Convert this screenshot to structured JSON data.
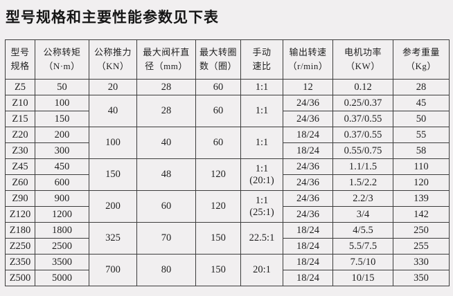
{
  "title": "型号规格和主要性能参数见下表",
  "colors": {
    "background": "#f1eff0",
    "border": "#3c3c3c",
    "text": "#1f1f1f"
  },
  "table": {
    "headers": [
      "型号\n规格",
      "公称转矩\n（N·m）",
      "公称推力\n（KN）",
      "最大阀杆直\n径（mm）",
      "最大转圈\n数（圈）",
      "手动\n速比",
      "输出转速\n（r/min）",
      "电机功率\n（KW）",
      "参考重量\n（Kg）"
    ],
    "rows": [
      {
        "cells": [
          {
            "v": "Z5"
          },
          {
            "v": "50"
          },
          {
            "v": "20"
          },
          {
            "v": "28"
          },
          {
            "v": "60"
          },
          {
            "v": "1:1"
          },
          {
            "v": "12"
          },
          {
            "v": "0.12"
          },
          {
            "v": "28"
          }
        ]
      },
      {
        "cells": [
          {
            "v": "Z10"
          },
          {
            "v": "100"
          },
          {
            "v": "40",
            "rs": 2
          },
          {
            "v": "28",
            "rs": 2
          },
          {
            "v": "60",
            "rs": 2
          },
          {
            "v": "1:1",
            "rs": 2
          },
          {
            "v": "24/36"
          },
          {
            "v": "0.25/0.37"
          },
          {
            "v": "45"
          }
        ]
      },
      {
        "cells": [
          {
            "v": "Z15"
          },
          {
            "v": "150"
          },
          {
            "v": "24/36"
          },
          {
            "v": "0.37/0.55"
          },
          {
            "v": "50"
          }
        ]
      },
      {
        "cells": [
          {
            "v": "Z20"
          },
          {
            "v": "200"
          },
          {
            "v": "100",
            "rs": 2
          },
          {
            "v": "40",
            "rs": 2
          },
          {
            "v": "60",
            "rs": 2
          },
          {
            "v": "1:1",
            "rs": 2
          },
          {
            "v": "18/24"
          },
          {
            "v": "0.37/0.55"
          },
          {
            "v": "55"
          }
        ]
      },
      {
        "cells": [
          {
            "v": "Z30"
          },
          {
            "v": "300"
          },
          {
            "v": "18/24"
          },
          {
            "v": "0.55/0.75"
          },
          {
            "v": "58"
          }
        ]
      },
      {
        "cells": [
          {
            "v": "Z45"
          },
          {
            "v": "450"
          },
          {
            "v": "150",
            "rs": 2
          },
          {
            "v": "48",
            "rs": 2
          },
          {
            "v": "120",
            "rs": 2
          },
          {
            "v": "1:1\n(20:1)",
            "rs": 2
          },
          {
            "v": "24/36"
          },
          {
            "v": "1.1/1.5"
          },
          {
            "v": "110"
          }
        ]
      },
      {
        "cells": [
          {
            "v": "Z60"
          },
          {
            "v": "600"
          },
          {
            "v": "24/36"
          },
          {
            "v": "1.5/2.2"
          },
          {
            "v": "120"
          }
        ]
      },
      {
        "cells": [
          {
            "v": "Z90"
          },
          {
            "v": "900"
          },
          {
            "v": "200",
            "rs": 2
          },
          {
            "v": "60",
            "rs": 2
          },
          {
            "v": "120",
            "rs": 2
          },
          {
            "v": "1:1\n(25:1)",
            "rs": 2
          },
          {
            "v": "24/36"
          },
          {
            "v": "2.2/3"
          },
          {
            "v": "139"
          }
        ]
      },
      {
        "cells": [
          {
            "v": "Z120"
          },
          {
            "v": "1200"
          },
          {
            "v": "24/36"
          },
          {
            "v": "3/4"
          },
          {
            "v": "142"
          }
        ]
      },
      {
        "cells": [
          {
            "v": "Z180"
          },
          {
            "v": "1800"
          },
          {
            "v": "325",
            "rs": 2
          },
          {
            "v": "70",
            "rs": 2
          },
          {
            "v": "150",
            "rs": 2
          },
          {
            "v": "22.5:1",
            "rs": 2
          },
          {
            "v": "18/24"
          },
          {
            "v": "4/5.5"
          },
          {
            "v": "250"
          }
        ]
      },
      {
        "cells": [
          {
            "v": "Z250"
          },
          {
            "v": "2500"
          },
          {
            "v": "18/24"
          },
          {
            "v": "5.5/7.5"
          },
          {
            "v": "255"
          }
        ]
      },
      {
        "cells": [
          {
            "v": "Z350"
          },
          {
            "v": "3500"
          },
          {
            "v": "700",
            "rs": 2
          },
          {
            "v": "80",
            "rs": 2
          },
          {
            "v": "150",
            "rs": 2
          },
          {
            "v": "20:1",
            "rs": 2
          },
          {
            "v": "18/24"
          },
          {
            "v": "7.5/10"
          },
          {
            "v": "330"
          }
        ]
      },
      {
        "cells": [
          {
            "v": "Z500"
          },
          {
            "v": "5000"
          },
          {
            "v": "18/24"
          },
          {
            "v": "10/15"
          },
          {
            "v": "350"
          }
        ]
      }
    ]
  }
}
